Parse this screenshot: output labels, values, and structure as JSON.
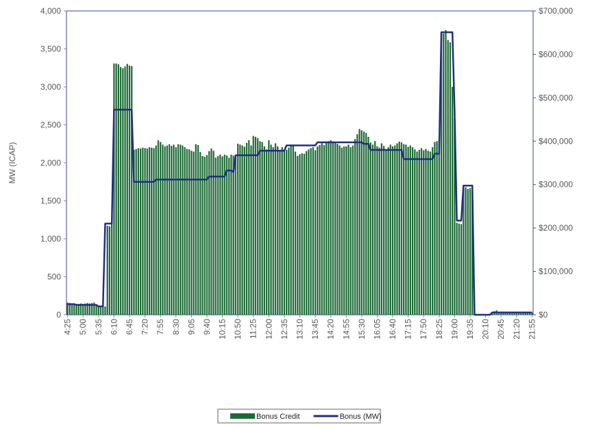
{
  "chart_data": {
    "type": "bar",
    "y_label": "MW (ICAP)",
    "legend": "bottom",
    "categories": [
      "4:25",
      null,
      null,
      null,
      null,
      null,
      null,
      "5:00",
      null,
      null,
      null,
      null,
      null,
      null,
      "5:35",
      null,
      null,
      null,
      null,
      null,
      null,
      "6:10",
      null,
      null,
      null,
      null,
      null,
      null,
      "6:45",
      null,
      null,
      null,
      null,
      null,
      null,
      "7:20",
      null,
      null,
      null,
      null,
      null,
      null,
      "7:55",
      null,
      null,
      null,
      null,
      null,
      null,
      "8:30",
      null,
      null,
      null,
      null,
      null,
      null,
      "9:05",
      null,
      null,
      null,
      null,
      null,
      null,
      "9:40",
      null,
      null,
      null,
      null,
      null,
      null,
      "10:15",
      null,
      null,
      null,
      null,
      null,
      null,
      "10:50",
      null,
      null,
      null,
      null,
      null,
      null,
      "11:25",
      null,
      null,
      null,
      null,
      null,
      null,
      "12:00",
      null,
      null,
      null,
      null,
      null,
      null,
      "12:35",
      null,
      null,
      null,
      null,
      null,
      null,
      "13:10",
      null,
      null,
      null,
      null,
      null,
      null,
      "13:45",
      null,
      null,
      null,
      null,
      null,
      null,
      "14:20",
      null,
      null,
      null,
      null,
      null,
      null,
      "14:55",
      null,
      null,
      null,
      null,
      null,
      null,
      "15:30",
      null,
      null,
      null,
      null,
      null,
      null,
      "16:05",
      null,
      null,
      null,
      null,
      null,
      null,
      "16:40",
      null,
      null,
      null,
      null,
      null,
      null,
      "17:15",
      null,
      null,
      null,
      null,
      null,
      null,
      "17:50",
      null,
      null,
      null,
      null,
      null,
      null,
      "18:25",
      null,
      null,
      null,
      null,
      null,
      null,
      "19:00",
      null,
      null,
      null,
      null,
      null,
      null,
      "19:35",
      null,
      null,
      null,
      null,
      null,
      null,
      "20:10",
      null,
      null,
      null,
      null,
      null,
      null,
      "20:45",
      null,
      null,
      null,
      null,
      null,
      null,
      "21:20",
      null,
      null,
      null,
      null,
      null,
      null,
      "21:55"
    ],
    "series": [
      {
        "name": "Bonus Credit",
        "type": "bar",
        "axis": "y2",
        "color": "#1e6b36",
        "values": [
          28000,
          27000,
          26000,
          25000,
          24000,
          25000,
          26000,
          25000,
          26000,
          27000,
          26000,
          27000,
          28000,
          24000,
          19000,
          19000,
          19000,
          19000,
          205000,
          204000,
          210000,
          579000,
          579000,
          577000,
          571000,
          568000,
          572000,
          578000,
          574000,
          573000,
          380000,
          382000,
          384000,
          383000,
          385000,
          384000,
          383000,
          386000,
          385000,
          384000,
          390000,
          402000,
          398000,
          392000,
          388000,
          390000,
          393000,
          389000,
          392000,
          386000,
          393000,
          392000,
          390000,
          386000,
          382000,
          381000,
          378000,
          376000,
          393000,
          391000,
          375000,
          366000,
          364000,
          368000,
          377000,
          383000,
          378000,
          362000,
          366000,
          369000,
          365000,
          369000,
          367000,
          362000,
          369000,
          367000,
          364000,
          394000,
          392000,
          390000,
          387000,
          396000,
          402000,
          390000,
          412000,
          410000,
          407000,
          400000,
          398000,
          388000,
          381000,
          402000,
          392000,
          386000,
          395000,
          388000,
          378000,
          386000,
          381000,
          380000,
          385000,
          392000,
          390000,
          376000,
          366000,
          370000,
          372000,
          371000,
          377000,
          381000,
          384000,
          386000,
          379000,
          388000,
          391000,
          395000,
          391000,
          398000,
          400000,
          402000,
          399000,
          398000,
          394000,
          390000,
          385000,
          388000,
          388000,
          392000,
          386000,
          390000,
          405000,
          416000,
          428000,
          425000,
          422000,
          419000,
          410000,
          397000,
          392000,
          400000,
          388000,
          385000,
          395000,
          389000,
          380000,
          386000,
          392000,
          388000,
          390000,
          395000,
          399000,
          397000,
          393000,
          392000,
          387000,
          390000,
          386000,
          381000,
          376000,
          380000,
          384000,
          379000,
          382000,
          378000,
          376000,
          386000,
          398000,
          400000,
          404000,
          648000,
          648000,
          656000,
          633000,
          628000,
          525000,
          452000,
          212000,
          210000,
          209000,
          292000,
          294000,
          290000,
          292000,
          288000,
          0,
          0,
          0,
          0,
          0,
          0,
          0,
          0,
          5000,
          8000,
          10000,
          6000,
          5000,
          5000,
          5000,
          5000,
          5000,
          5000,
          5000,
          5000,
          5000,
          5000,
          5000,
          5000,
          5000,
          5000,
          5000
        ]
      },
      {
        "name": "Bonus (MW)",
        "type": "line",
        "color": "#1f2d86",
        "values": [
          140,
          140,
          140,
          140,
          130,
          130,
          130,
          130,
          130,
          130,
          130,
          130,
          130,
          130,
          110,
          110,
          110,
          1200,
          1200,
          1200,
          1200,
          2700,
          2700,
          2700,
          2700,
          2700,
          2700,
          2700,
          2700,
          2700,
          1750,
          1750,
          1750,
          1750,
          1750,
          1750,
          1750,
          1750,
          1750,
          1750,
          1780,
          1780,
          1780,
          1780,
          1780,
          1780,
          1780,
          1780,
          1780,
          1780,
          1780,
          1780,
          1780,
          1780,
          1780,
          1780,
          1780,
          1780,
          1780,
          1780,
          1780,
          1780,
          1780,
          1780,
          1820,
          1820,
          1820,
          1820,
          1820,
          1820,
          1820,
          1820,
          1900,
          1900,
          1900,
          1880,
          2100,
          2100,
          2100,
          2100,
          2100,
          2100,
          2100,
          2100,
          2100,
          2100,
          2100,
          2160,
          2160,
          2160,
          2160,
          2160,
          2160,
          2160,
          2160,
          2160,
          2160,
          2160,
          2160,
          2230,
          2230,
          2230,
          2230,
          2230,
          2230,
          2230,
          2230,
          2230,
          2230,
          2230,
          2230,
          2230,
          2230,
          2270,
          2270,
          2270,
          2270,
          2270,
          2270,
          2270,
          2270,
          2270,
          2270,
          2270,
          2270,
          2270,
          2270,
          2270,
          2270,
          2270,
          2270,
          2270,
          2270,
          2270,
          2250,
          2250,
          2250,
          2170,
          2170,
          2170,
          2170,
          2170,
          2170,
          2170,
          2170,
          2170,
          2170,
          2170,
          2170,
          2170,
          2170,
          2170,
          2050,
          2050,
          2050,
          2050,
          2050,
          2050,
          2050,
          2050,
          2050,
          2050,
          2050,
          2050,
          2050,
          2050,
          2120,
          2120,
          2120,
          3720,
          3720,
          3720,
          3720,
          3720,
          3720,
          2670,
          1240,
          1240,
          1240,
          1700,
          1700,
          1700,
          1700,
          1700,
          0,
          0,
          0,
          0,
          0,
          0,
          0,
          0,
          30,
          30,
          30,
          30,
          30,
          30,
          30,
          30,
          30,
          30,
          30,
          30,
          30,
          30,
          30,
          30,
          30,
          30,
          30
        ]
      }
    ],
    "ylim": [
      0,
      4000
    ],
    "yticks": [
      0,
      500,
      {
        "value": 1000,
        "label": "1,000"
      },
      {
        "value": 1500,
        "label": "1,500"
      },
      {
        "value": 2000,
        "label": "2,000"
      },
      {
        "value": 2500,
        "label": "2,500"
      },
      {
        "value": 3000,
        "label": "3,000"
      },
      {
        "value": 3500,
        "label": "3,500"
      },
      {
        "value": 4000,
        "label": "4,000"
      }
    ],
    "y2lim": [
      0,
      700000
    ],
    "y2ticks": [
      {
        "value": 0,
        "label": "$0"
      },
      {
        "value": 100000,
        "label": "$100,000"
      },
      {
        "value": 200000,
        "label": "$200,000"
      },
      {
        "value": 300000,
        "label": "$300,000"
      },
      {
        "value": 400000,
        "label": "$400,000"
      },
      {
        "value": 500000,
        "label": "$500,000"
      },
      {
        "value": 600000,
        "label": "$600,000"
      },
      {
        "value": 700000,
        "label": "$700,000"
      }
    ]
  }
}
